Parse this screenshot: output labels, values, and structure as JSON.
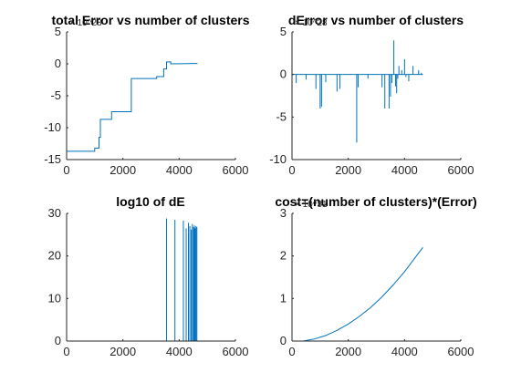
{
  "window": {
    "background": "#ffffff"
  },
  "colors": {
    "line": "#0072bd",
    "axis": "#262626",
    "title": "#000000"
  },
  "chart_data": [
    {
      "type": "line",
      "title": "total Error vs number of clusters",
      "xlabel": "",
      "ylabel": "",
      "xlim": [
        0,
        6000
      ],
      "ylim": [
        -15,
        5
      ],
      "xticks": [
        "0",
        "2000",
        "4000",
        "6000"
      ],
      "yticks": [
        "5",
        "0",
        "-5",
        "-10",
        "-15"
      ],
      "ytick_values": [
        5,
        0,
        -5,
        -10,
        -15
      ],
      "y_exponent_label": "× 10^28",
      "series": [
        {
          "x": [
            1,
            1000,
            1000,
            1150,
            1150,
            1200,
            1200,
            1600,
            1600,
            2300,
            2300,
            3200,
            3200,
            3450,
            3450,
            3550,
            3550,
            3700,
            3700,
            4650
          ],
          "y": [
            -13.7,
            -13.7,
            -13.2,
            -13.2,
            -11.5,
            -11.5,
            -8.7,
            -8.7,
            -7.5,
            -7.5,
            -2.3,
            -2.3,
            -2.0,
            -2.0,
            -0.8,
            -0.8,
            0.3,
            0.3,
            0.0,
            0.05
          ]
        }
      ]
    },
    {
      "type": "line",
      "title": "dError vs number of clusters",
      "xlabel": "",
      "ylabel": "",
      "xlim": [
        0,
        6000
      ],
      "ylim": [
        -10,
        5
      ],
      "xticks": [
        "0",
        "2000",
        "4000",
        "6000"
      ],
      "yticks": [
        "5",
        "0",
        "-5",
        "-10"
      ],
      "ytick_values": [
        5,
        0,
        -5,
        -10
      ],
      "y_exponent_label": "× 10^28",
      "baseline": 0,
      "series": [
        {
          "spikes": [
            [
              150,
              -1.0
            ],
            [
              500,
              -0.6
            ],
            [
              850,
              -1.7
            ],
            [
              1000,
              -4.0
            ],
            [
              1050,
              -3.8
            ],
            [
              1200,
              -0.9
            ],
            [
              1600,
              -2.0
            ],
            [
              1700,
              -1.7
            ],
            [
              2300,
              -8.0
            ],
            [
              2350,
              -1.5
            ],
            [
              2700,
              -0.5
            ],
            [
              3200,
              -1.5
            ],
            [
              3300,
              -4.0
            ],
            [
              3450,
              -4.0
            ],
            [
              3500,
              -2.6
            ],
            [
              3550,
              -1.0
            ],
            [
              3620,
              4.0
            ],
            [
              3680,
              -1.4
            ],
            [
              3720,
              -2.2
            ],
            [
              3760,
              -0.5
            ],
            [
              3800,
              1.0
            ],
            [
              3900,
              0.5
            ],
            [
              4000,
              1.8
            ],
            [
              4050,
              -0.3
            ],
            [
              4150,
              -0.8
            ],
            [
              4300,
              1.0
            ],
            [
              4500,
              0.5
            ],
            [
              4600,
              0.2
            ]
          ]
        }
      ]
    },
    {
      "type": "line",
      "title": "log10 of dE",
      "xlabel": "",
      "ylabel": "",
      "xlim": [
        0,
        6000
      ],
      "ylim": [
        0,
        30
      ],
      "xticks": [
        "0",
        "2000",
        "4000",
        "6000"
      ],
      "yticks": [
        "30",
        "20",
        "10",
        "0"
      ],
      "ytick_values": [
        30,
        20,
        10,
        0
      ],
      "y_exponent_label": "",
      "baseline": 0,
      "series": [
        {
          "spikes": [
            [
              3550,
              28.8
            ],
            [
              3850,
              28.5
            ],
            [
              4150,
              28.3
            ],
            [
              4250,
              26.5
            ],
            [
              4330,
              27.8
            ],
            [
              4380,
              27.0
            ],
            [
              4430,
              26.2
            ],
            [
              4470,
              27.5
            ],
            [
              4510,
              26.8
            ],
            [
              4540,
              27.2
            ],
            [
              4570,
              26.5
            ],
            [
              4600,
              27.0
            ],
            [
              4630,
              26.8
            ]
          ]
        }
      ]
    },
    {
      "type": "line",
      "title": "cost=(number of clusters)*(Error)",
      "xlabel": "",
      "ylabel": "",
      "xlim": [
        0,
        6000
      ],
      "ylim": [
        0,
        3
      ],
      "xticks": [
        "0",
        "2000",
        "4000",
        "6000"
      ],
      "yticks": [
        "3",
        "2",
        "1",
        "0"
      ],
      "ytick_values": [
        3,
        2,
        1,
        0
      ],
      "y_exponent_label": "× 10^31",
      "series": [
        {
          "x": [
            400,
            800,
            1200,
            1600,
            2000,
            2400,
            2800,
            3200,
            3600,
            4000,
            4400,
            4650
          ],
          "y": [
            0.0,
            0.05,
            0.13,
            0.25,
            0.4,
            0.58,
            0.79,
            1.04,
            1.32,
            1.63,
            1.98,
            2.2
          ]
        }
      ]
    }
  ]
}
